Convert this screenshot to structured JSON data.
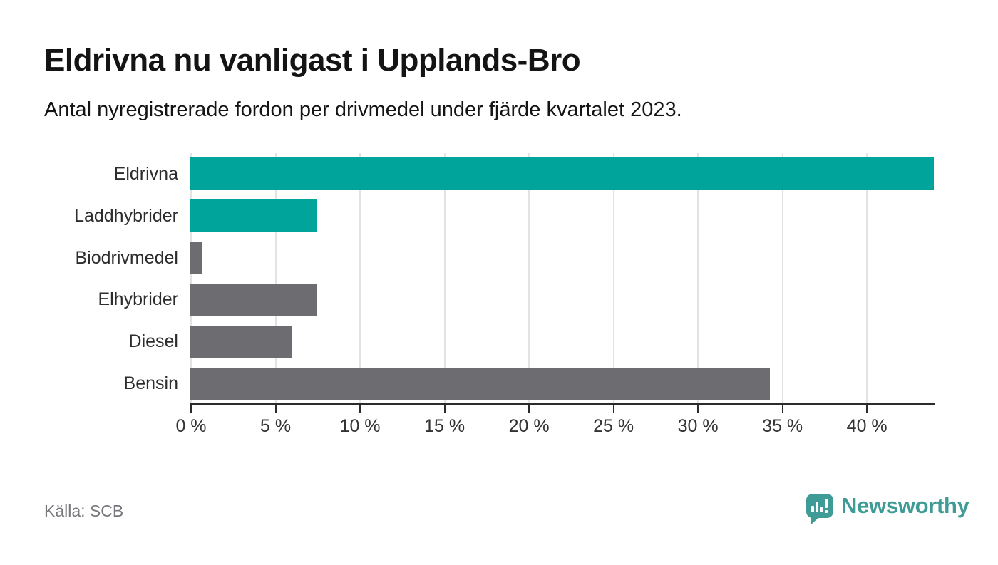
{
  "header": {
    "title": "Eldrivna nu vanligast i Upplands-Bro",
    "subtitle": "Antal nyregistrerade fordon per drivmedel under fjärde kvartalet 2023."
  },
  "footer": {
    "source": "Källa: SCB",
    "brand": "Newsworthy"
  },
  "colors": {
    "teal": "#00A49B",
    "gray": "#6C6C71",
    "grid": "#e3e3e3",
    "axis": "#2b2b2b",
    "brand": "#3E9B95",
    "muted_text": "#76767c"
  },
  "chart_data": {
    "type": "bar",
    "orientation": "horizontal",
    "title": "Eldrivna nu vanligast i Upplands-Bro",
    "subtitle": "Antal nyregistrerade fordon per drivmedel under fjärde kvartalet 2023.",
    "categories": [
      "Eldrivna",
      "Laddhybrider",
      "Biodrivmedel",
      "Elhybrider",
      "Diesel",
      "Bensin"
    ],
    "values": [
      44.0,
      7.5,
      0.7,
      7.5,
      6.0,
      34.3
    ],
    "unit": "%",
    "bar_colors": [
      "#00A49B",
      "#00A49B",
      "#6C6C71",
      "#6C6C71",
      "#6C6C71",
      "#6C6C71"
    ],
    "xlim": [
      0,
      44
    ],
    "x_ticks": [
      0,
      5,
      10,
      15,
      20,
      25,
      30,
      35,
      40
    ],
    "x_tick_labels": [
      "0 %",
      "5 %",
      "10 %",
      "15 %",
      "20 %",
      "25 %",
      "30 %",
      "35 %",
      "40 %"
    ],
    "grid": "vertical-gridlines-on",
    "legend": "none",
    "source": "Källa: SCB"
  }
}
